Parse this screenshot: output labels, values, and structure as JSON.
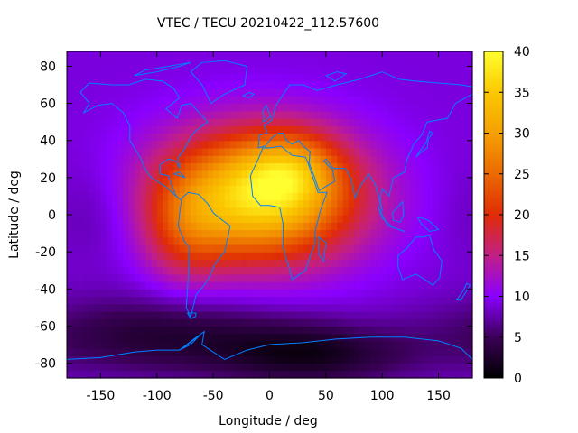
{
  "chart_data": {
    "type": "heatmap",
    "title": "VTEC / TECU 20210422_112.57600",
    "xlabel": "Longitude / deg",
    "ylabel": "Latitude / deg",
    "xlim": [
      -180,
      180
    ],
    "ylim": [
      -88,
      88
    ],
    "xticks": [
      -150,
      -100,
      -50,
      0,
      50,
      100,
      150
    ],
    "yticks": [
      -80,
      -60,
      -40,
      -20,
      0,
      20,
      40,
      60,
      80
    ],
    "colorbar": {
      "min": 0,
      "max": 40,
      "ticks": [
        0,
        5,
        10,
        15,
        20,
        25,
        30,
        35,
        40
      ]
    },
    "colormap": [
      {
        "v": 0,
        "color": "#000000"
      },
      {
        "v": 5,
        "color": "#3b0058"
      },
      {
        "v": 10,
        "color": "#8a00ff"
      },
      {
        "v": 15,
        "color": "#c21f86"
      },
      {
        "v": 20,
        "color": "#e02c06"
      },
      {
        "v": 25,
        "color": "#ec6a00"
      },
      {
        "v": 30,
        "color": "#f5a000"
      },
      {
        "v": 35,
        "color": "#fbc800"
      },
      {
        "v": 40,
        "color": "#ffff30"
      }
    ],
    "field": {
      "background": 9,
      "features": [
        {
          "lon": -10,
          "lat": 10,
          "amp": 28,
          "sigma_lon": 60,
          "sigma_lat": 24
        },
        {
          "lon": 20,
          "lat": 25,
          "amp": 8,
          "sigma_lon": 28,
          "sigma_lat": 14
        },
        {
          "lon": -75,
          "lat": -10,
          "amp": 6,
          "sigma_lon": 25,
          "sigma_lat": 20
        },
        {
          "lon": -100,
          "lat": -65,
          "amp": -6,
          "sigma_lon": 80,
          "sigma_lat": 15
        },
        {
          "lon": 40,
          "lat": -75,
          "amp": -7,
          "sigma_lon": 60,
          "sigma_lat": 12
        },
        {
          "lon": -150,
          "lat": 0,
          "amp": -2,
          "sigma_lon": 30,
          "sigma_lat": 20
        }
      ]
    },
    "coastline_color": "#0080ff"
  }
}
